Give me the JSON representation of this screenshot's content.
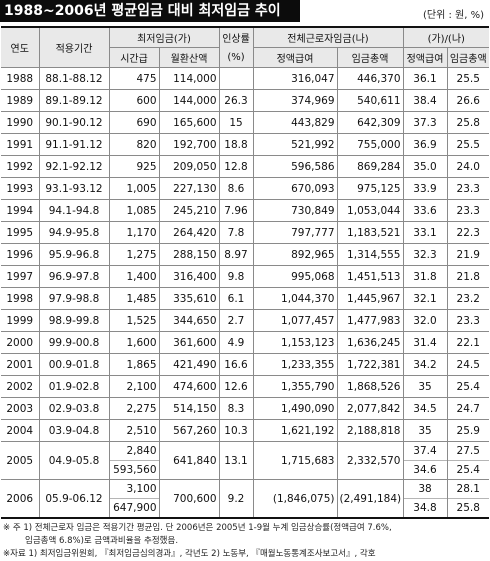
{
  "title": "1988~2006년 평균임금 대비 최저임금 추이",
  "unit_note": "(단위 : 원, %)",
  "headers": {
    "year": "연도",
    "period": "적용기간",
    "min_wage": "최저임금(가)",
    "hourly": "시간급",
    "monthly": "월환산액",
    "raise": "인상률",
    "raise_unit": "(%)",
    "all_workers": "전체근로자임금(나)",
    "regular_pay": "정액급여",
    "total_pay": "임금총액",
    "ratio": "(가)/(나)",
    "ratio_regular": "정액급여",
    "ratio_total": "임금총액"
  },
  "rows": [
    {
      "year": "1988",
      "period": "88.1-88.12",
      "hourly": "475",
      "monthly": "114,000",
      "raise": "",
      "regular": "316,047",
      "total": "446,370",
      "ratio_regular": "36.1",
      "ratio_total": "25.5"
    },
    {
      "year": "1989",
      "period": "89.1-89.12",
      "hourly": "600",
      "monthly": "144,000",
      "raise": "26.3",
      "regular": "374,969",
      "total": "540,611",
      "ratio_regular": "38.4",
      "ratio_total": "26.6"
    },
    {
      "year": "1990",
      "period": "90.1-90.12",
      "hourly": "690",
      "monthly": "165,600",
      "raise": "15",
      "regular": "443,829",
      "total": "642,309",
      "ratio_regular": "37.3",
      "ratio_total": "25.8"
    },
    {
      "year": "1991",
      "period": "91.1-91.12",
      "hourly": "820",
      "monthly": "192,700",
      "raise": "18.8",
      "regular": "521,992",
      "total": "755,000",
      "ratio_regular": "36.9",
      "ratio_total": "25.5"
    },
    {
      "year": "1992",
      "period": "92.1-92.12",
      "hourly": "925",
      "monthly": "209,050",
      "raise": "12.8",
      "regular": "596,586",
      "total": "869,284",
      "ratio_regular": "35.0",
      "ratio_total": "24.0"
    },
    {
      "year": "1993",
      "period": "93.1-93.12",
      "hourly": "1,005",
      "monthly": "227,130",
      "raise": "8.6",
      "regular": "670,093",
      "total": "975,125",
      "ratio_regular": "33.9",
      "ratio_total": "23.3"
    },
    {
      "year": "1994",
      "period": "94.1-94.8",
      "hourly": "1,085",
      "monthly": "245,210",
      "raise": "7.96",
      "regular": "730,849",
      "total": "1,053,044",
      "ratio_regular": "33.6",
      "ratio_total": "23.3"
    },
    {
      "year": "1995",
      "period": "94.9-95.8",
      "hourly": "1,170",
      "monthly": "264,420",
      "raise": "7.8",
      "regular": "797,777",
      "total": "1,183,521",
      "ratio_regular": "33.1",
      "ratio_total": "22.3"
    },
    {
      "year": "1996",
      "period": "95.9-96.8",
      "hourly": "1,275",
      "monthly": "288,150",
      "raise": "8.97",
      "regular": "892,965",
      "total": "1,314,555",
      "ratio_regular": "32.3",
      "ratio_total": "21.9"
    },
    {
      "year": "1997",
      "period": "96.9-97.8",
      "hourly": "1,400",
      "monthly": "316,400",
      "raise": "9.8",
      "regular": "995,068",
      "total": "1,451,513",
      "ratio_regular": "31.8",
      "ratio_total": "21.8"
    },
    {
      "year": "1998",
      "period": "97.9-98.8",
      "hourly": "1,485",
      "monthly": "335,610",
      "raise": "6.1",
      "regular": "1,044,370",
      "total": "1,445,967",
      "ratio_regular": "32.1",
      "ratio_total": "23.2"
    },
    {
      "year": "1999",
      "period": "98.9-99.8",
      "hourly": "1,525",
      "monthly": "344,650",
      "raise": "2.7",
      "regular": "1,077,457",
      "total": "1,477,983",
      "ratio_regular": "32.0",
      "ratio_total": "23.3"
    },
    {
      "year": "2000",
      "period": "99.9-00.8",
      "hourly": "1,600",
      "monthly": "361,600",
      "raise": "4.9",
      "regular": "1,153,123",
      "total": "1,636,245",
      "ratio_regular": "31.4",
      "ratio_total": "22.1"
    },
    {
      "year": "2001",
      "period": "00.9-01.8",
      "hourly": "1,865",
      "monthly": "421,490",
      "raise": "16.6",
      "regular": "1,233,355",
      "total": "1,722,381",
      "ratio_regular": "34.2",
      "ratio_total": "24.5"
    },
    {
      "year": "2002",
      "period": "01.9-02.8",
      "hourly": "2,100",
      "monthly": "474,600",
      "raise": "12.6",
      "regular": "1,355,790",
      "total": "1,868,526",
      "ratio_regular": "35",
      "ratio_total": "25.4"
    },
    {
      "year": "2003",
      "period": "02.9-03.8",
      "hourly": "2,275",
      "monthly": "514,150",
      "raise": "8.3",
      "regular": "1,490,090",
      "total": "2,077,842",
      "ratio_regular": "34.5",
      "ratio_total": "24.7"
    },
    {
      "year": "2004",
      "period": "03.9-04.8",
      "hourly": "2,510",
      "monthly": "567,260",
      "raise": "10.3",
      "regular": "1,621,192",
      "total": "2,188,818",
      "ratio_regular": "35",
      "ratio_total": "25.9"
    }
  ],
  "split_rows": [
    {
      "year": "2005",
      "period": "04.9-05.8",
      "hourly_a": "2,840",
      "hourly_b": "593,560",
      "monthly": "641,840",
      "raise": "13.1",
      "regular": "1,715,683",
      "total": "2,332,570",
      "ratio_regular_a": "37.4",
      "ratio_regular_b": "34.6",
      "ratio_total_a": "27.5",
      "ratio_total_b": "25.4"
    },
    {
      "year": "2006",
      "period": "05.9-06.12",
      "hourly_a": "3,100",
      "hourly_b": "647,900",
      "monthly": "700,600",
      "raise": "9.2",
      "regular": "(1,846,075)",
      "total": "(2,491,184)",
      "ratio_regular_a": "38",
      "ratio_regular_b": "34.8",
      "ratio_total_a": "28.1",
      "ratio_total_b": "25.8"
    }
  ],
  "notes": {
    "note1": "※ 주 1) 전체근로자 임금은 적용기간 평균임. 단 2006년은 2005년 1-9월 누계 임금상승률(정액급여 7.6%,",
    "note1_cont": "임금총액 6.8%)로 금액과비율을 추정했음.",
    "source": "※자료 1) 최저임금위원회, 『최저임금심의경과』, 각년도   2) 노동부, 『매월노동통계조사보고서』, 각호"
  }
}
